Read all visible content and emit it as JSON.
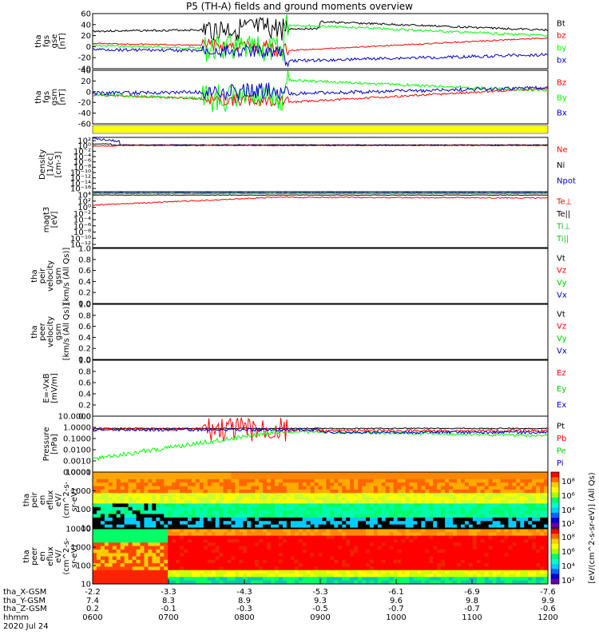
{
  "title": "P5 (TH-A) fields and ground moments overview",
  "date_label": "2020 Jul 24",
  "colors": {
    "black": "#000000",
    "red": "#ff0000",
    "green": "#00ff00",
    "blue": "#0000cc",
    "yellow": "#ffff00",
    "dkgreen": "#00cc00"
  },
  "panels": [
    {
      "key": "fgs_gse",
      "ylabel": [
        "tha",
        "fgs",
        "gse",
        "[nT]"
      ],
      "ticks": [
        "60",
        "40",
        "20",
        "0",
        "-20",
        "-40"
      ],
      "legend": [
        {
          "text": "Bt",
          "color": "black"
        },
        {
          "text": "bz",
          "color": "red"
        },
        {
          "text": "by",
          "color": "green"
        },
        {
          "text": "bx",
          "color": "blue"
        }
      ]
    },
    {
      "key": "fgs_gsm",
      "ylabel": [
        "tha",
        "fgs",
        "gsm",
        "[nT]"
      ],
      "ticks": [
        "40",
        "20",
        "0",
        "-20",
        "-40",
        "-60"
      ],
      "legend": [
        {
          "text": "Bz",
          "color": "red"
        },
        {
          "text": "By",
          "color": "green"
        },
        {
          "text": "Bx",
          "color": "blue"
        }
      ]
    },
    {
      "key": "density",
      "ylabel": [
        "Density",
        "[1/cc]",
        "[cm-3]"
      ],
      "ticks": [
        "10²",
        "10⁰",
        "10⁻²",
        "10⁻⁴",
        "10⁻⁶",
        "10⁻⁸",
        "10⁻¹⁰",
        "10⁻¹²",
        "10⁻¹⁴",
        "10⁻¹⁶"
      ],
      "legend": [
        {
          "text": "Ne",
          "color": "red"
        },
        {
          "text": "Ni",
          "color": "black"
        },
        {
          "text": "Npot",
          "color": "blue"
        }
      ]
    },
    {
      "key": "temp",
      "ylabel": [
        "magt3",
        "[eV]"
      ],
      "ticks": [
        "10⁴",
        "10²",
        "10⁰",
        "10⁻²",
        "10⁻⁴",
        "10⁻⁶",
        "10⁻⁸",
        "10⁻¹⁰",
        "10⁻¹²"
      ],
      "legend": [
        {
          "text": "Te⊥",
          "color": "red"
        },
        {
          "text": "Te||",
          "color": "black"
        },
        {
          "text": "Ti⊥",
          "color": "dkgreen"
        },
        {
          "text": "Ti||",
          "color": "dkgreen"
        }
      ]
    },
    {
      "key": "peir_vel",
      "ylabel": [
        "tha",
        "peir",
        "velocity",
        "gsm",
        "[km/s (All Qs)]"
      ],
      "ticks": [
        "1.0",
        "0.8",
        "0.6",
        "0.4",
        "0.2",
        "0.0"
      ],
      "legend": [
        {
          "text": "Vt",
          "color": "black"
        },
        {
          "text": "Vz",
          "color": "red"
        },
        {
          "text": "Vy",
          "color": "dkgreen"
        },
        {
          "text": "Vx",
          "color": "blue"
        }
      ]
    },
    {
      "key": "peer_vel",
      "ylabel": [
        "tha",
        "peer",
        "velocity",
        "gsm",
        "[km/s (All Qs)]"
      ],
      "ticks": [
        "1.0",
        "0.8",
        "0.6",
        "0.4",
        "0.2",
        "0.0"
      ],
      "legend": [
        {
          "text": "Vt",
          "color": "black"
        },
        {
          "text": "Vz",
          "color": "red"
        },
        {
          "text": "Vy",
          "color": "dkgreen"
        },
        {
          "text": "Vx",
          "color": "blue"
        }
      ]
    },
    {
      "key": "efield",
      "ylabel": [
        "E=-VxB",
        "[mV/m]"
      ],
      "ticks": [
        "1.0",
        "0.8",
        "0.6",
        "0.4",
        "0.2",
        "0.0"
      ],
      "legend": [
        {
          "text": "Ez",
          "color": "red"
        },
        {
          "text": "Ey",
          "color": "dkgreen"
        },
        {
          "text": "Ex",
          "color": "blue"
        }
      ]
    },
    {
      "key": "pressure",
      "ylabel": [
        "Pressure",
        "[nPa]"
      ],
      "ticks": [
        "10.0000",
        "1.0000",
        "0.1000",
        "0.0100",
        "0.0010",
        "0.0001"
      ],
      "legend": [
        {
          "text": "Pt",
          "color": "black"
        },
        {
          "text": "Pb",
          "color": "red"
        },
        {
          "text": "Pe",
          "color": "dkgreen"
        },
        {
          "text": "Pi",
          "color": "blue"
        }
      ]
    },
    {
      "key": "peir_en",
      "ylabel": [
        "tha",
        "peir",
        "en",
        "eflux",
        "eV/",
        "(cm^2-s-",
        "sr-eV)"
      ],
      "ticks": [
        "10000",
        "1000",
        "100",
        "10"
      ]
    },
    {
      "key": "peer_en",
      "ylabel": [
        "tha",
        "peer",
        "en",
        "eflux",
        "eV/",
        "(cm^2-s-",
        "sr-eV)"
      ],
      "ticks": [
        "10000",
        "1000",
        "100",
        "10"
      ]
    }
  ],
  "colorbar": {
    "ticks": [
      "10⁸",
      "10⁶",
      "10⁴",
      "10²",
      "10⁸",
      "10⁶",
      "10⁴",
      "10²"
    ],
    "label": "[eV/(cm^2-s-sr-eV)] (All Qs)"
  },
  "xaxis": {
    "rows": [
      {
        "label": "tha_X-GSM",
        "values": [
          "-2.2",
          "-3.3",
          "-4.3",
          "-5.3",
          "-6.1",
          "-6.9",
          "-7.6"
        ]
      },
      {
        "label": "tha_Y-GSM",
        "values": [
          "7.4",
          "8.3",
          "8.9",
          "9.3",
          "9.6",
          "9.8",
          "9.9"
        ]
      },
      {
        "label": "tha_Z-GSM",
        "values": [
          "0.2",
          "-0.1",
          "-0.3",
          "-0.5",
          "-0.7",
          "-0.7",
          "-0.6"
        ]
      },
      {
        "label": "hhmm",
        "values": [
          "0600",
          "0700",
          "0800",
          "0900",
          "1000",
          "1100",
          "1200"
        ]
      }
    ]
  },
  "chart_data": [
    {
      "type": "line",
      "title": "P5 (TH-A) fields and ground moments overview",
      "ylabel": "tha fgs gse [nT]",
      "x": [
        "0600",
        "0700",
        "0800",
        "0900",
        "1000",
        "1100",
        "1200"
      ],
      "ylim": [
        -40,
        60
      ],
      "series": [
        {
          "name": "Bt",
          "values": [
            30,
            22,
            40,
            44,
            38,
            34,
            28
          ]
        },
        {
          "name": "bz",
          "values": [
            5,
            2,
            -10,
            -2,
            6,
            14,
            18
          ]
        },
        {
          "name": "by",
          "values": [
            2,
            -5,
            -20,
            38,
            30,
            20,
            24
          ]
        },
        {
          "name": "bx",
          "values": [
            -5,
            -8,
            -12,
            -28,
            -22,
            -18,
            -14
          ]
        }
      ]
    },
    {
      "type": "line",
      "ylabel": "tha fgs gsm [nT]",
      "x": [
        "0600",
        "0700",
        "0800",
        "0900",
        "1000",
        "1100",
        "1200"
      ],
      "ylim": [
        -60,
        40
      ],
      "series": [
        {
          "name": "Bz",
          "values": [
            -8,
            -8,
            -25,
            -12,
            -4,
            2,
            4
          ]
        },
        {
          "name": "By",
          "values": [
            -4,
            -18,
            -30,
            14,
            12,
            6,
            0
          ]
        },
        {
          "name": "Bx",
          "values": [
            -2,
            -6,
            8,
            -4,
            0,
            6,
            6
          ]
        }
      ]
    },
    {
      "type": "line",
      "ylabel": "Density [1/cc] [cm-3]",
      "x": [
        "0600",
        "0700",
        "0800",
        "0900",
        "1000",
        "1100",
        "1200"
      ],
      "series": [
        {
          "name": "Ne",
          "values": [
            0.5,
            0.2,
            0.2,
            0.15,
            0.15,
            0.15,
            0.2
          ]
        },
        {
          "name": "Ni",
          "values": [
            0.4,
            0.2,
            0.2,
            0.15,
            0.15,
            0.15,
            0.2
          ]
        },
        {
          "name": "Npot",
          "values": [
            10,
            0.3,
            0.2,
            0.2,
            0.15,
            0.15,
            0.2
          ]
        }
      ]
    },
    {
      "type": "line",
      "ylabel": "magt3 [eV]",
      "x": [
        "0600",
        "0700",
        "0800",
        "0900",
        "1000",
        "1100",
        "1200"
      ],
      "series": [
        {
          "name": "Te⊥",
          "values": [
            30,
            100,
            500,
            1000,
            1200,
            1200,
            1000
          ]
        },
        {
          "name": "Te||",
          "values": [
            40,
            120,
            600,
            1100,
            1200,
            1200,
            1000
          ]
        },
        {
          "name": "Ti⊥",
          "values": [
            3000,
            3000,
            3000,
            3000,
            3000,
            3000,
            3000
          ]
        },
        {
          "name": "Ti||",
          "values": [
            3000,
            3000,
            3000,
            3000,
            3000,
            3000,
            3000
          ]
        }
      ]
    },
    {
      "type": "line",
      "ylabel": "Pressure [nPa]",
      "x": [
        "0600",
        "0700",
        "0800",
        "0900",
        "1000",
        "1100",
        "1200"
      ],
      "series": [
        {
          "name": "Pt",
          "values": [
            0.8,
            0.9,
            1,
            1,
            0.8,
            0.7,
            0.6
          ]
        },
        {
          "name": "Pb",
          "values": [
            0.6,
            0.5,
            0.01,
            0.8,
            0.6,
            0.5,
            0.4
          ]
        },
        {
          "name": "Pe",
          "values": [
            0.002,
            0.01,
            0.05,
            0.5,
            0.3,
            0.2,
            0.15
          ]
        },
        {
          "name": "Pi",
          "values": [
            0.5,
            0.8,
            0.8,
            0.6,
            0.4,
            0.3,
            0.3
          ]
        }
      ]
    }
  ]
}
